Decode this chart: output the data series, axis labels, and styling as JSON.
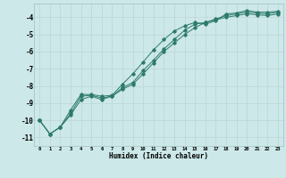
{
  "title": "",
  "xlabel": "Humidex (Indice chaleur)",
  "bg_color": "#cce8e8",
  "grid_color": "#c0d8d8",
  "line_color": "#2d7a6a",
  "xlim": [
    -0.5,
    23.5
  ],
  "ylim": [
    -11.5,
    -3.2
  ],
  "yticks": [
    -11,
    -10,
    -9,
    -8,
    -7,
    -6,
    -5,
    -4
  ],
  "xticks": [
    0,
    1,
    2,
    3,
    4,
    5,
    6,
    7,
    8,
    9,
    10,
    11,
    12,
    13,
    14,
    15,
    16,
    17,
    18,
    19,
    20,
    21,
    22,
    23
  ],
  "series1_x": [
    0,
    1,
    2,
    3,
    4,
    5,
    6,
    7,
    8,
    9,
    10,
    11,
    12,
    13,
    14,
    15,
    16,
    17,
    18,
    19,
    20,
    21,
    22,
    23
  ],
  "series1_y": [
    -10.0,
    -10.8,
    -10.4,
    -9.4,
    -8.5,
    -8.5,
    -8.6,
    -8.55,
    -7.9,
    -7.3,
    -6.6,
    -5.9,
    -5.3,
    -4.8,
    -4.5,
    -4.3,
    -4.4,
    -4.2,
    -3.8,
    -3.75,
    -3.6,
    -3.7,
    -3.7,
    -3.65
  ],
  "series2_x": [
    0,
    1,
    2,
    3,
    4,
    5,
    6,
    7,
    8,
    9,
    10,
    11,
    12,
    13,
    14,
    15,
    16,
    17,
    18,
    19,
    20,
    21,
    22,
    23
  ],
  "series2_y": [
    -10.0,
    -10.8,
    -10.4,
    -9.6,
    -8.6,
    -8.55,
    -8.7,
    -8.6,
    -8.1,
    -7.8,
    -7.1,
    -6.5,
    -5.85,
    -5.3,
    -4.75,
    -4.4,
    -4.3,
    -4.1,
    -3.9,
    -3.8,
    -3.7,
    -3.75,
    -3.8,
    -3.7
  ],
  "series3_x": [
    0,
    1,
    2,
    3,
    4,
    5,
    6,
    7,
    8,
    9,
    10,
    11,
    12,
    13,
    14,
    15,
    16,
    17,
    18,
    19,
    20,
    21,
    22,
    23
  ],
  "series3_y": [
    -10.0,
    -10.8,
    -10.4,
    -9.7,
    -8.8,
    -8.6,
    -8.8,
    -8.6,
    -8.2,
    -7.9,
    -7.3,
    -6.65,
    -6.0,
    -5.5,
    -5.0,
    -4.6,
    -4.3,
    -4.15,
    -4.0,
    -3.9,
    -3.8,
    -3.85,
    -3.9,
    -3.8
  ]
}
